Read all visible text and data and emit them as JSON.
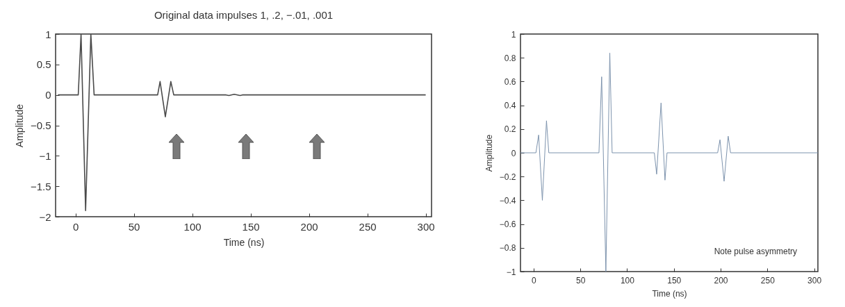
{
  "chart_data": [
    {
      "type": "line",
      "title": "Original data impulses 1, .2, −.01, .001",
      "xlabel": "Time (ns)",
      "ylabel": "Amplitude",
      "xlim": [
        -17,
        305
      ],
      "ylim": [
        -2,
        1
      ],
      "xticks": [
        0,
        50,
        100,
        150,
        200,
        250,
        300
      ],
      "yticks": [
        1,
        0.5,
        0,
        -0.5,
        -1,
        -1.5,
        -2
      ],
      "grid": false,
      "series": [
        {
          "color": "#4a4a4a",
          "x": [
            -15,
            2.4,
            4.8,
            8.7,
            13.2,
            16,
            70.4,
            72.5,
            77,
            81.7,
            84.2,
            129,
            131.5,
            136,
            141,
            143,
            300
          ],
          "values": [
            0,
            0,
            1,
            -1.9,
            1,
            0,
            0,
            0.22,
            -0.36,
            0.22,
            0,
            0,
            -0.01,
            0.01,
            -0.01,
            0,
            0
          ]
        }
      ]
    },
    {
      "type": "line",
      "xlabel": "Time (ns)",
      "ylabel": "Amplitude",
      "xlim": [
        -14,
        304
      ],
      "ylim": [
        -1,
        1
      ],
      "xticks": [
        0,
        50,
        100,
        150,
        200,
        250,
        300
      ],
      "yticks": [
        1,
        0.8,
        0.6,
        0.4,
        0.2,
        0,
        -0.2,
        -0.4,
        -0.6,
        -0.8,
        -1
      ],
      "grid": false,
      "annotations": [
        "Note pulse asymmetry"
      ],
      "series": [
        {
          "color": "#7d93ad",
          "x": [
            -14,
            2.5,
            5.4,
            9.4,
            13.8,
            16.3,
            69.9,
            72.8,
            77.3,
            81.5,
            84,
            129.1,
            131.6,
            136.3,
            140.5,
            142.7,
            196.8,
            199.3,
            203.7,
            208.1,
            210.6,
            304
          ],
          "values": [
            0,
            0,
            0.15,
            -0.4,
            0.27,
            0,
            0,
            0.64,
            -1,
            0.84,
            0,
            0,
            -0.18,
            0.42,
            -0.23,
            0,
            0,
            0.11,
            -0.24,
            0.14,
            0,
            0
          ]
        }
      ]
    }
  ]
}
